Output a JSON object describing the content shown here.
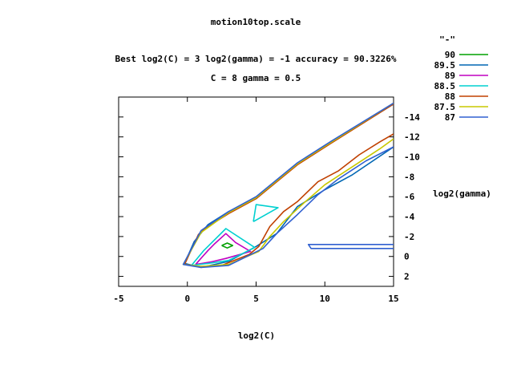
{
  "chart_data": {
    "type": "contour",
    "title": "motion10top.scale",
    "subtitle_lines": [
      "Best log2(C) = 3  log2(gamma) = -1  accuracy = 90.3226%",
      "C = 8  gamma = 0.5"
    ],
    "xlabel": "log2(C)",
    "ylabel": "log2(gamma)",
    "xlim": [
      -5,
      15
    ],
    "ylim": [
      -16,
      3
    ],
    "y_reversed": true,
    "x_ticks": [
      -5,
      0,
      5,
      10,
      15
    ],
    "y_ticks": [
      -14,
      -12,
      -10,
      -8,
      -6,
      -4,
      -2,
      0,
      2
    ],
    "legend_title": "\"-\"",
    "legend_placement": "top-right",
    "grid": false,
    "series": [
      {
        "name": "90",
        "color": "#00a000",
        "paths": [
          [
            [
              2.5,
              -1.1
            ],
            [
              2.9,
              -1.35
            ],
            [
              3.3,
              -1.1
            ],
            [
              2.9,
              -0.85
            ],
            [
              2.5,
              -1.1
            ]
          ]
        ]
      },
      {
        "name": "89.5",
        "color": "#0066b3",
        "paths": [
          [
            [
              15,
              -15.3
            ],
            [
              10.5,
              -11.5
            ],
            [
              8,
              -9.3
            ],
            [
              5,
              -5.8
            ],
            [
              3,
              -4.5
            ],
            [
              1.5,
              -3.2
            ],
            [
              0.5,
              -1.5
            ],
            [
              -0.2,
              0.7
            ],
            [
              1,
              1.1
            ],
            [
              3,
              0.5
            ],
            [
              5,
              -1
            ],
            [
              6.5,
              -2.3
            ],
            [
              8,
              -5
            ],
            [
              10,
              -6.7
            ],
            [
              12,
              -8.2
            ],
            [
              15,
              -11
            ]
          ]
        ]
      },
      {
        "name": "89",
        "color": "#c000c0",
        "paths": [
          [
            [
              0.6,
              0.8
            ],
            [
              1.5,
              -0.6
            ],
            [
              2,
              -1.3
            ],
            [
              2.8,
              -2.3
            ],
            [
              3.5,
              -1.4
            ],
            [
              4.6,
              -0.5
            ],
            [
              2.8,
              0.2
            ],
            [
              1.7,
              0.55
            ],
            [
              0.6,
              0.8
            ]
          ]
        ]
      },
      {
        "name": "88.5",
        "color": "#00d0d0",
        "paths": [
          [
            [
              0.3,
              0.9
            ],
            [
              1.2,
              -0.6
            ],
            [
              2.8,
              -2.8
            ],
            [
              4.9,
              -0.9
            ],
            [
              3,
              0.4
            ],
            [
              1.5,
              0.7
            ],
            [
              0.3,
              0.9
            ]
          ],
          [
            [
              4.8,
              -3.5
            ],
            [
              5,
              -5.2
            ],
            [
              6.6,
              -4.9
            ],
            [
              4.8,
              -3.5
            ]
          ]
        ]
      },
      {
        "name": "88",
        "color": "#c04000",
        "paths": [
          [
            [
              15,
              -15.3
            ],
            [
              10.5,
              -11.4
            ],
            [
              8,
              -9.2
            ],
            [
              5,
              -5.8
            ],
            [
              3,
              -4.3
            ],
            [
              1.5,
              -3
            ],
            [
              0.8,
              -2.2
            ],
            [
              -0.2,
              0.8
            ],
            [
              0.9,
              1
            ],
            [
              2.5,
              0.9
            ],
            [
              4.5,
              -0.2
            ],
            [
              5.2,
              -1
            ],
            [
              6,
              -3
            ],
            [
              7,
              -4.5
            ],
            [
              8,
              -5.5
            ],
            [
              9.5,
              -7.5
            ],
            [
              11,
              -8.6
            ],
            [
              12.5,
              -10.2
            ],
            [
              14,
              -11.5
            ],
            [
              15,
              -12.3
            ]
          ]
        ]
      },
      {
        "name": "87.5",
        "color": "#c8c800",
        "paths": [
          [
            [
              15,
              -15.4
            ],
            [
              10.5,
              -11.5
            ],
            [
              8,
              -9.3
            ],
            [
              5,
              -5.9
            ],
            [
              3,
              -4.4
            ],
            [
              1,
              -2.4
            ],
            [
              -0.3,
              0.8
            ],
            [
              1,
              1
            ],
            [
              3,
              0.8
            ],
            [
              5.2,
              -0.5
            ],
            [
              6,
              -2
            ],
            [
              7,
              -3.5
            ],
            [
              8.5,
              -5.4
            ],
            [
              10,
              -7.2
            ],
            [
              12,
              -9
            ],
            [
              14,
              -10.8
            ],
            [
              15,
              -11.8
            ]
          ]
        ]
      },
      {
        "name": "87",
        "color": "#3060d0",
        "paths": [
          [
            [
              15,
              -15.4
            ],
            [
              10.5,
              -11.6
            ],
            [
              8,
              -9.4
            ],
            [
              5,
              -6
            ],
            [
              3,
              -4.5
            ],
            [
              1,
              -2.6
            ],
            [
              -0.3,
              0.8
            ],
            [
              1,
              1.1
            ],
            [
              3,
              0.9
            ],
            [
              5.5,
              -0.8
            ],
            [
              6.5,
              -2.3
            ],
            [
              8,
              -4.2
            ],
            [
              9.5,
              -6.2
            ],
            [
              11,
              -7.8
            ],
            [
              13,
              -9.6
            ],
            [
              15,
              -11
            ]
          ],
          [
            [
              15,
              -1.2
            ],
            [
              8.8,
              -1.2
            ],
            [
              9,
              -0.8
            ],
            [
              15,
              -0.8
            ]
          ]
        ]
      }
    ]
  }
}
